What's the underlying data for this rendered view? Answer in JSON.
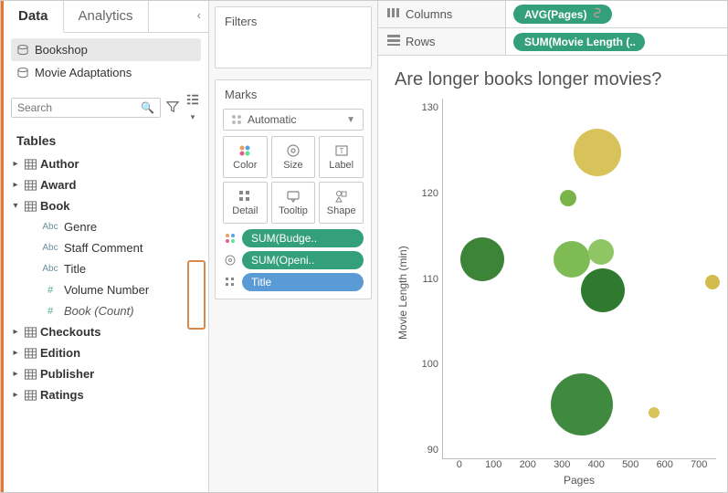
{
  "tabs": {
    "data": "Data",
    "analytics": "Analytics"
  },
  "datasources": [
    {
      "label": "Bookshop",
      "selected": true
    },
    {
      "label": "Movie Adaptations",
      "selected": false
    }
  ],
  "search": {
    "placeholder": "Search"
  },
  "tables_header": "Tables",
  "tables": [
    {
      "name": "Author",
      "expanded": false
    },
    {
      "name": "Award",
      "expanded": false
    },
    {
      "name": "Book",
      "expanded": true,
      "fields": [
        {
          "type": "abc",
          "label": "Genre"
        },
        {
          "type": "abc",
          "label": "Staff Comment"
        },
        {
          "type": "abc",
          "label": "Title"
        },
        {
          "type": "num",
          "label": "Volume Number"
        },
        {
          "type": "num",
          "label": "Book (Count)",
          "italic": true
        }
      ]
    },
    {
      "name": "Checkouts",
      "expanded": false
    },
    {
      "name": "Edition",
      "expanded": false
    },
    {
      "name": "Publisher",
      "expanded": false
    },
    {
      "name": "Ratings",
      "expanded": false
    }
  ],
  "filters_title": "Filters",
  "marks": {
    "title": "Marks",
    "type": "Automatic",
    "cells": [
      "Color",
      "Size",
      "Label",
      "Detail",
      "Tooltip",
      "Shape"
    ],
    "pills": [
      {
        "icon": "color",
        "label": "SUM(Budge..",
        "cls": "green"
      },
      {
        "icon": "size",
        "label": "SUM(Openi..",
        "cls": "green"
      },
      {
        "icon": "detail",
        "label": "Title",
        "cls": "blue"
      }
    ]
  },
  "shelves": {
    "columns": {
      "label": "Columns",
      "pill": "AVG(Pages)"
    },
    "rows": {
      "label": "Rows",
      "pill": "SUM(Movie Length (.."
    }
  },
  "viz": {
    "title": "Are longer books longer movies?",
    "xlabel": "Pages",
    "ylabel": "Movie Length (min)",
    "xlim": [
      0,
      700
    ],
    "ylim": [
      85,
      132
    ],
    "yticks": [
      130,
      120,
      110,
      100,
      90
    ],
    "xticks": [
      0,
      100,
      200,
      300,
      400,
      500,
      600,
      700
    ],
    "bubbles": [
      {
        "x": 100,
        "y": 111,
        "r": 24,
        "c": "#3b8438"
      },
      {
        "x": 320,
        "y": 119,
        "r": 9,
        "c": "#79b44a"
      },
      {
        "x": 330,
        "y": 111,
        "r": 20,
        "c": "#7fbb54"
      },
      {
        "x": 355,
        "y": 92,
        "r": 34,
        "c": "#3f8a3e"
      },
      {
        "x": 395,
        "y": 125,
        "r": 26,
        "c": "#d8c25a"
      },
      {
        "x": 405,
        "y": 112,
        "r": 14,
        "c": "#8fc565"
      },
      {
        "x": 410,
        "y": 107,
        "r": 24,
        "c": "#2f7a2f"
      },
      {
        "x": 540,
        "y": 91,
        "r": 6,
        "c": "#d8c25a"
      },
      {
        "x": 690,
        "y": 108,
        "r": 8,
        "c": "#d2bc50"
      }
    ]
  }
}
